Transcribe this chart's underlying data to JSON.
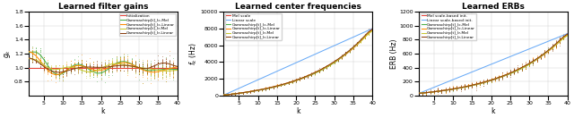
{
  "title1": "Learned filter gains",
  "title2": "Learned center frequencies",
  "title3": "Learned ERBs",
  "xlabel": "k",
  "ylabel1": "g_k",
  "ylabel2": "f_k (Hz)",
  "ylabel3": "ERB (Hz)",
  "ylim1": [
    0.6,
    1.8
  ],
  "ylim2": [
    0,
    10000
  ],
  "ylim3": [
    0,
    1200
  ],
  "yticks1": [
    0.8,
    1.0,
    1.2,
    1.4,
    1.6,
    1.8
  ],
  "yticks2": [
    0,
    2000,
    4000,
    6000,
    8000,
    10000
  ],
  "yticks3": [
    0,
    200,
    400,
    600,
    800,
    1000,
    1200
  ],
  "xticks": [
    5,
    10,
    15,
    20,
    25,
    30,
    35,
    40
  ],
  "colors": {
    "init": "#e8443a",
    "linear": "#6aabf7",
    "Ic_Mel": "#4daf4a",
    "Ic_Linear": "#ff8c00",
    "Ir_Mel": "#c8c832",
    "Ir_Linear": "#8b4010"
  },
  "legend1": [
    "Initialization",
    "Gammachirp[t]_Ic-Mel",
    "Gammachirp[t]_Ic-Linear",
    "Gammachirp[t]_Ir-Mel",
    "Gammachirp[t]_Ir-Linear"
  ],
  "legend2": [
    "Mel scale",
    "Linear scale",
    "Gammachirp[t]_Ic-Mel",
    "Gammachirp[t]_Ic-Linear",
    "Gammachirp[t]_Ir-Mel",
    "Gammachirp[t]_Ir-Linear"
  ],
  "legend3": [
    "Mel scale-based init.",
    "Linear scale-based init.",
    "Gammachirp[t]_Ic-Mel",
    "Gammachirp[t]_Ic-Linear",
    "Gammachirp[t]_Ir-Mel",
    "Gammachirp[t]_Ir-Linear"
  ],
  "figsize": [
    6.4,
    1.32
  ],
  "dpi": 100
}
